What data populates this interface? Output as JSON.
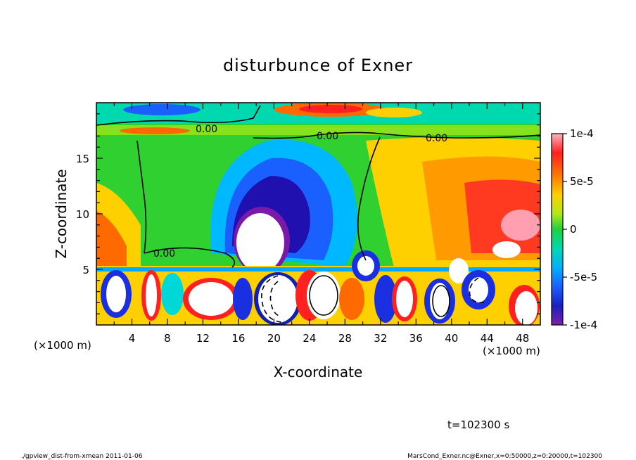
{
  "chart_data": {
    "type": "heatmap",
    "title": "disturbunce of Exner",
    "xlabel": "X-coordinate",
    "ylabel": "Z-coordinate",
    "x_unit": "(×1000 m)",
    "y_unit": "(×1000 m)",
    "xlim": [
      0,
      50
    ],
    "ylim": [
      0,
      20
    ],
    "x_ticks": [
      "4",
      "8",
      "12",
      "16",
      "20",
      "24",
      "28",
      "32",
      "36",
      "40",
      "44",
      "48"
    ],
    "y_ticks": [
      "5",
      "10",
      "15"
    ],
    "colorbar": {
      "min": -0.0001,
      "max": 0.0001,
      "tick_labels": [
        "1e-4",
        "5e-5",
        "0",
        "-5e-5",
        "-1e-4"
      ],
      "colors": [
        "#ff9fb0",
        "#ff2020",
        "#ff6a00",
        "#ffa500",
        "#ffd700",
        "#e6f000",
        "#9ee61a",
        "#30d030",
        "#00d88a",
        "#00d8d8",
        "#00a8ff",
        "#1a6aff",
        "#1030e0",
        "#2010b0",
        "#7a1aa8"
      ]
    },
    "contour_labels": [
      "0.00",
      "0.00",
      "0.00",
      "0.00"
    ],
    "annotation": "t=102300 s"
  },
  "footer": {
    "left": "./gpview_dist-from-xmean   2011-01-06",
    "right": "MarsCond_Exner.nc@Exner,x=0:50000,z=0:20000,t=102300"
  }
}
